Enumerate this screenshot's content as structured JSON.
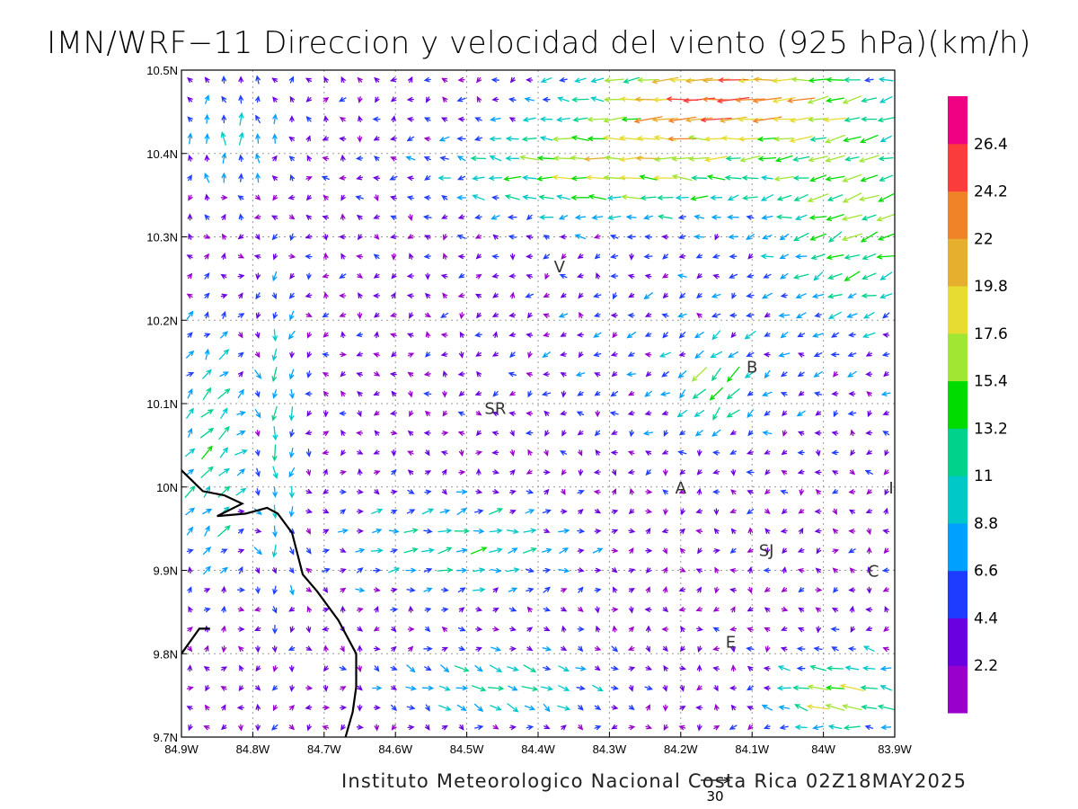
{
  "title": "IMN/WRF−11 Direccion y velocidad del viento (925 hPa)(km/h)",
  "credit": "Instituto Meteorologico Nacional Costa Rica 02Z18MAY2025",
  "reference_vector": {
    "label": "30",
    "value": 30
  },
  "chart_data": {
    "type": "vector-field",
    "title": "IMN/WRF−11 Direccion y velocidad del viento (925 hPa)(km/h)",
    "level": "925 hPa",
    "units": "km/h",
    "valid_time": "02Z18MAY2025",
    "lon_range": [
      -84.9,
      -83.9
    ],
    "lat_range": [
      9.7,
      10.5
    ],
    "x_ticks": [
      {
        "value": -84.9,
        "label": "84.9W"
      },
      {
        "value": -84.8,
        "label": "84.8W"
      },
      {
        "value": -84.7,
        "label": "84.7W"
      },
      {
        "value": -84.6,
        "label": "84.6W"
      },
      {
        "value": -84.5,
        "label": "84.5W"
      },
      {
        "value": -84.4,
        "label": "84.4W"
      },
      {
        "value": -84.3,
        "label": "84.3W"
      },
      {
        "value": -84.2,
        "label": "84.2W"
      },
      {
        "value": -84.1,
        "label": "84.1W"
      },
      {
        "value": -84.0,
        "label": "84W"
      },
      {
        "value": -83.9,
        "label": "83.9W"
      }
    ],
    "y_ticks": [
      {
        "value": 9.7,
        "label": "9.7N"
      },
      {
        "value": 9.8,
        "label": "9.8N"
      },
      {
        "value": 9.9,
        "label": "9.9N"
      },
      {
        "value": 10.0,
        "label": "10N"
      },
      {
        "value": 10.1,
        "label": "10.1N"
      },
      {
        "value": 10.2,
        "label": "10.2N"
      },
      {
        "value": 10.3,
        "label": "10.3N"
      },
      {
        "value": 10.4,
        "label": "10.4N"
      },
      {
        "value": 10.5,
        "label": "10.5N"
      }
    ],
    "grid": true,
    "colorbar": {
      "levels": [
        "2.2",
        "4.4",
        "6.6",
        "8.8",
        "11",
        "13.2",
        "15.4",
        "17.6",
        "19.8",
        "22",
        "24.2",
        "26.4"
      ],
      "colors": [
        "#9900cc",
        "#6a00e0",
        "#1e3cff",
        "#00a0ff",
        "#00c8c8",
        "#00d28c",
        "#00dc00",
        "#a0e632",
        "#e6dc32",
        "#e6af2d",
        "#f08228",
        "#fa3c3c",
        "#f00082"
      ]
    },
    "places": [
      {
        "label": "V",
        "lon": -84.37,
        "lat": 10.265
      },
      {
        "label": "SR",
        "lon": -84.46,
        "lat": 10.095
      },
      {
        "label": "B",
        "lon": -84.1,
        "lat": 10.145
      },
      {
        "label": "A",
        "lon": -84.2,
        "lat": 10.0
      },
      {
        "label": "SJ",
        "lon": -84.08,
        "lat": 9.925
      },
      {
        "label": "C",
        "lon": -83.93,
        "lat": 9.9
      },
      {
        "label": "E",
        "lon": -84.13,
        "lat": 9.815
      },
      {
        "label": "I",
        "lon": -83.905,
        "lat": 10.0
      }
    ],
    "coastline": [
      [
        -84.9,
        10.02
      ],
      [
        -84.87,
        9.995
      ],
      [
        -84.84,
        9.99
      ],
      [
        -84.815,
        9.98
      ],
      [
        -84.85,
        9.965
      ],
      [
        -84.81,
        9.968
      ],
      [
        -84.78,
        9.975
      ],
      [
        -84.765,
        9.968
      ],
      [
        -84.745,
        9.945
      ],
      [
        -84.73,
        9.895
      ],
      [
        -84.71,
        9.875
      ],
      [
        -84.68,
        9.84
      ],
      [
        -84.655,
        9.8
      ],
      [
        -84.655,
        9.76
      ],
      [
        -84.66,
        9.73
      ],
      [
        -84.67,
        9.7
      ]
    ],
    "coastline_south": [
      [
        -84.9,
        9.8
      ],
      [
        -84.875,
        9.83
      ],
      [
        -84.86,
        9.83
      ]
    ],
    "arrow_grid": {
      "nx": 42,
      "ny": 34,
      "unit": "u/v km/h approximated"
    }
  }
}
